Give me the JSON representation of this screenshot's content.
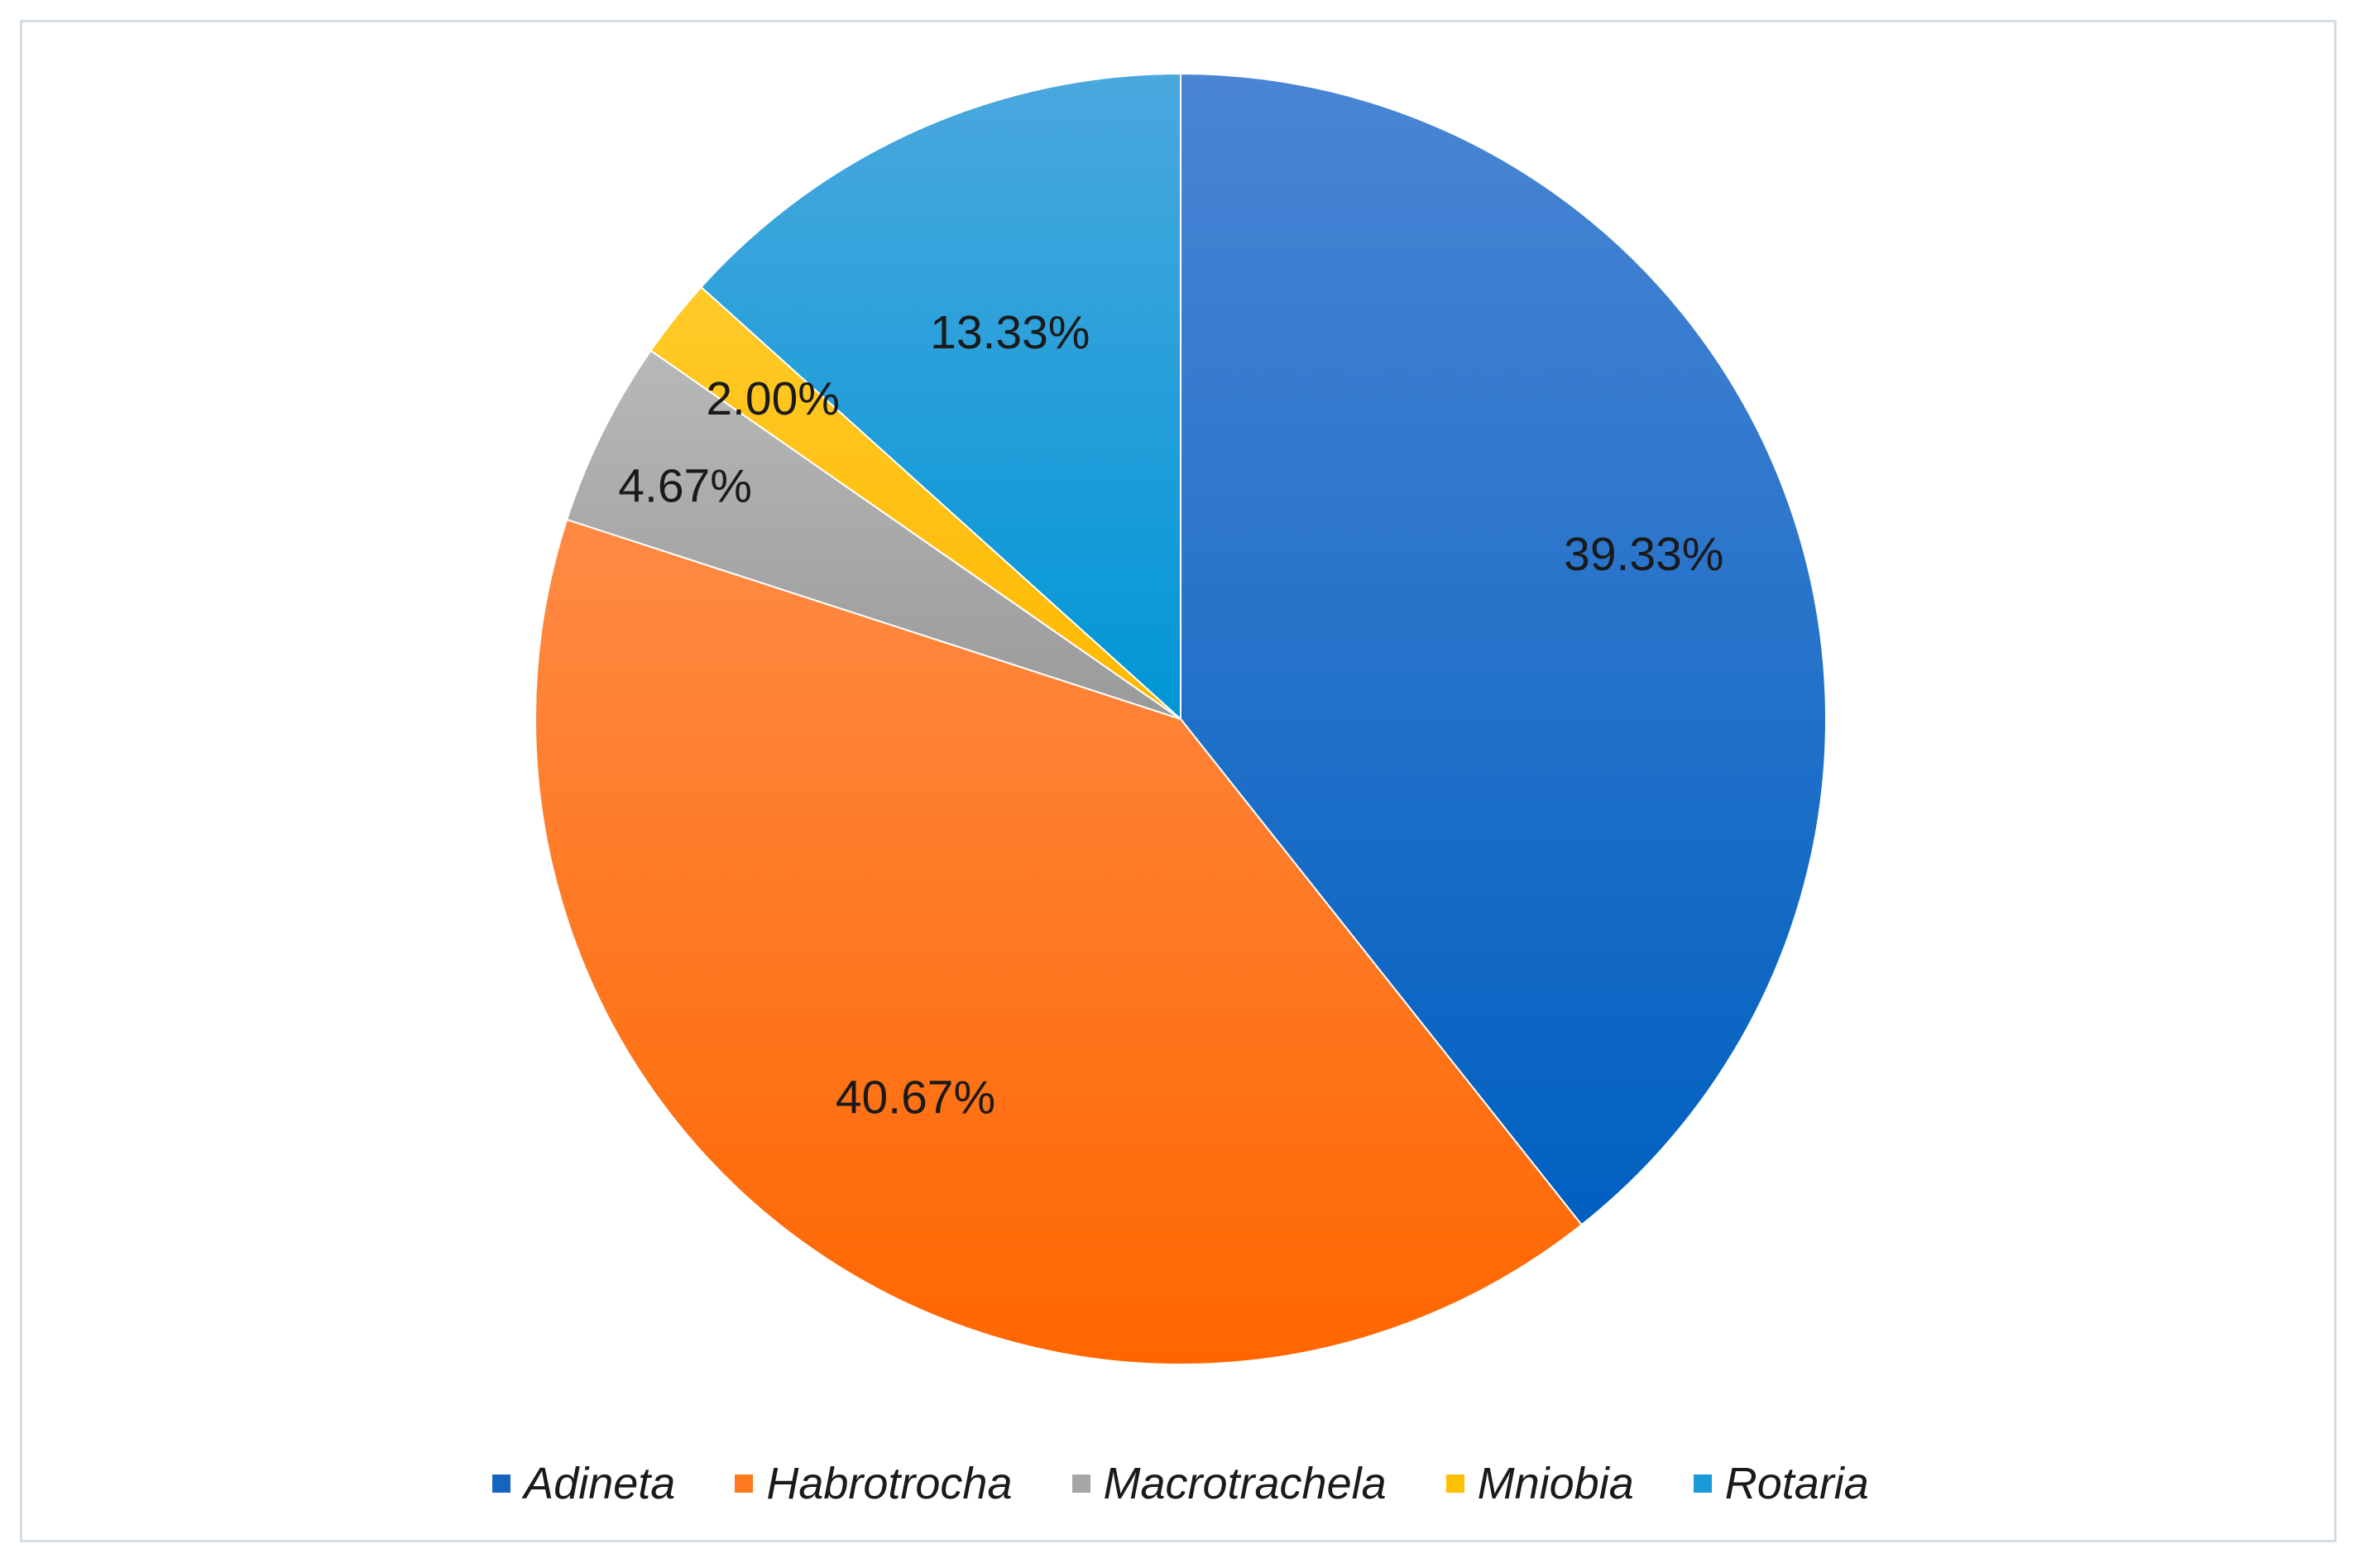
{
  "chart_data": {
    "type": "pie",
    "title": "",
    "start_angle_deg": 0,
    "direction": "clockwise",
    "legend_position": "bottom",
    "slices": [
      {
        "name": "Adineta",
        "value": 39.33,
        "label": "39.33%",
        "color": "#1565c0",
        "gradient": [
          "#4a85d4",
          "#0060c0"
        ]
      },
      {
        "name": "Habrotrocha",
        "value": 40.67,
        "label": "40.67%",
        "color": "#ff7a1f",
        "gradient": [
          "#ff8a44",
          "#ff6600"
        ]
      },
      {
        "name": "Macrotrachela",
        "value": 4.67,
        "label": "4.67%",
        "color": "#a6a6a6",
        "gradient": [
          "#b8b8b8",
          "#9a9a9a"
        ]
      },
      {
        "name": "Mniobia",
        "value": 2.0,
        "label": "2.00%",
        "color": "#ffc000",
        "gradient": [
          "#ffca28",
          "#ffb800"
        ]
      },
      {
        "name": "Rotaria",
        "value": 13.33,
        "label": "13.33%",
        "color": "#1a9ad8",
        "gradient": [
          "#4aa8de",
          "#0096d6"
        ]
      }
    ]
  }
}
